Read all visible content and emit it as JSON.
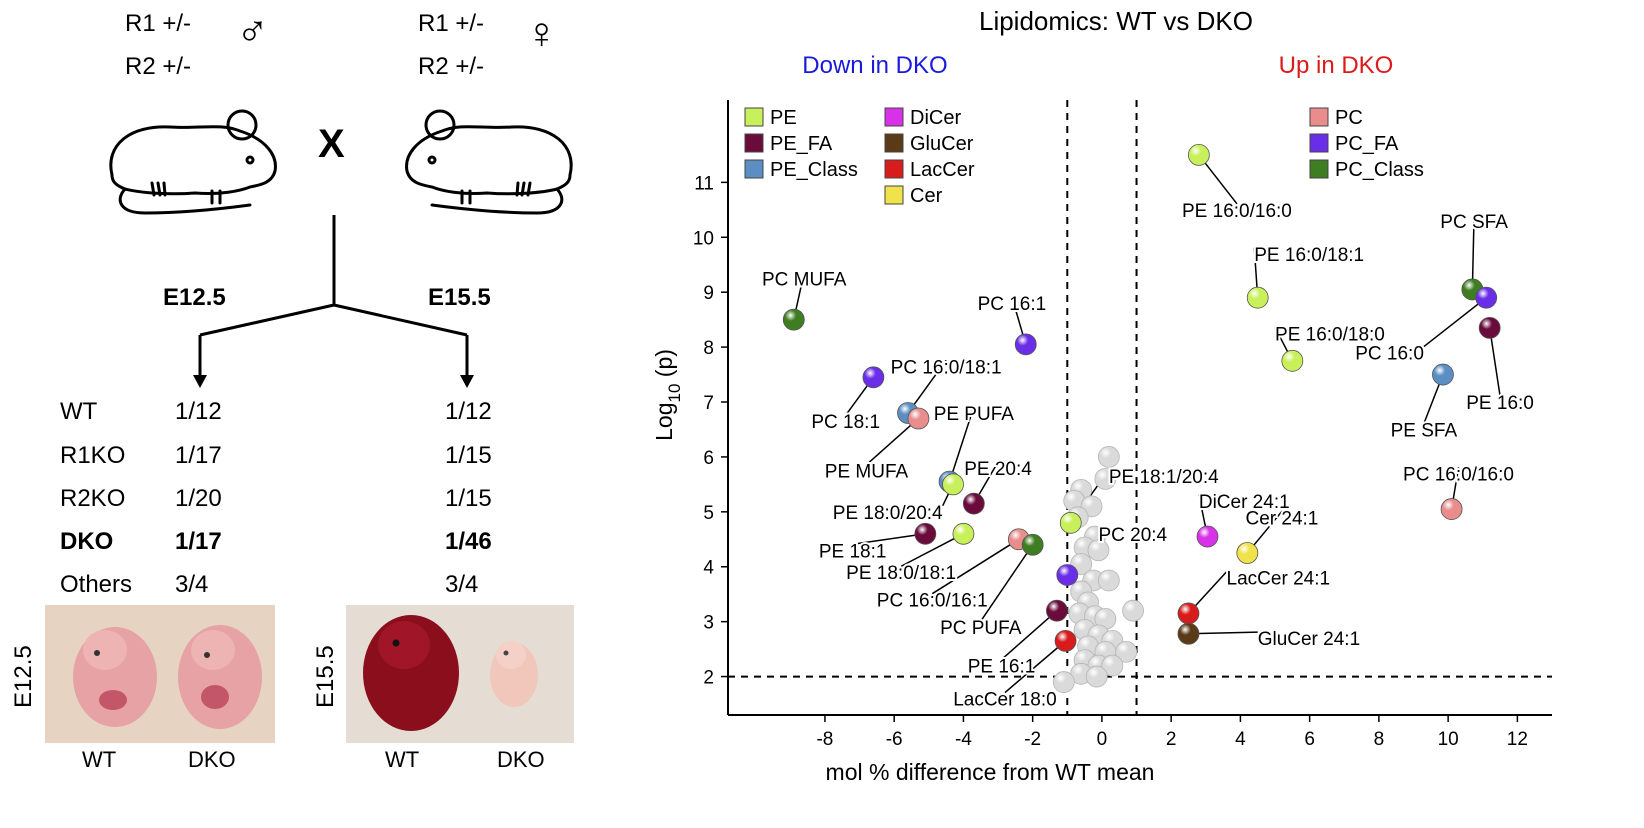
{
  "breeding": {
    "male": {
      "r1": "R1 +/-",
      "r2": "R2 +/-",
      "symbol": "♂"
    },
    "female": {
      "r1": "R1 +/-",
      "r2": "R2 +/-",
      "symbol": "♀"
    },
    "cross": "X",
    "stages": [
      "E12.5",
      "E15.5"
    ]
  },
  "ratios": {
    "rows": [
      {
        "label": "WT",
        "e12": "1/12",
        "e15": "1/12",
        "bold": false
      },
      {
        "label": "R1KO",
        "e12": "1/17",
        "e15": "1/15",
        "bold": false
      },
      {
        "label": "R2KO",
        "e12": "1/20",
        "e15": "1/15",
        "bold": false
      },
      {
        "label": "DKO",
        "e12": "1/17",
        "e15": "1/46",
        "bold": true
      },
      {
        "label": "Others",
        "e12": "3/4",
        "e15": "3/4",
        "bold": false
      }
    ]
  },
  "photos": [
    {
      "stage": "E12.5",
      "left": "WT",
      "right": "DKO"
    },
    {
      "stage": "E15.5",
      "left": "WT",
      "right": "DKO"
    }
  ],
  "chart_data": {
    "type": "scatter",
    "title": "Lipidomics: WT vs DKO",
    "annotation_down": "Down in DKO",
    "annotation_up": "Up in DKO",
    "xlabel": "mol % difference from WT mean",
    "ylabel_base": "Log",
    "ylabel_sub": "10",
    "ylabel_tail": " (p)",
    "xlim": [
      -10.8,
      13
    ],
    "ylim": [
      1.3,
      12.5
    ],
    "xticks": [
      -8,
      -6,
      -4,
      -2,
      0,
      2,
      4,
      6,
      8,
      10,
      12
    ],
    "yticks": [
      2,
      3,
      4,
      5,
      6,
      7,
      8,
      9,
      10,
      11
    ],
    "thresholds": {
      "x": [
        -1,
        1
      ],
      "y": 2
    },
    "colors": {
      "PE": "#c8f05a",
      "PE_FA": "#6b0b3c",
      "PE_Class": "#5b8fc4",
      "DiCer": "#d832e8",
      "GluCer": "#5b3a17",
      "LacCer": "#d81c1c",
      "Cer": "#f0e24a",
      "PC": "#e88c8c",
      "PC_FA": "#6a2ee8",
      "PC_Class": "#3f7d23",
      "NS": "#dadada",
      "down": "#1a1adc",
      "up": "#dc1a1a"
    },
    "legend_left": [
      {
        "name": "PE",
        "cls": "PE"
      },
      {
        "name": "PE_FA",
        "cls": "PE_FA"
      },
      {
        "name": "PE_Class",
        "cls": "PE_Class"
      }
    ],
    "legend_mid": [
      {
        "name": "DiCer",
        "cls": "DiCer"
      },
      {
        "name": "GluCer",
        "cls": "GluCer"
      },
      {
        "name": "LacCer",
        "cls": "LacCer"
      },
      {
        "name": "Cer",
        "cls": "Cer"
      }
    ],
    "legend_right": [
      {
        "name": "PC",
        "cls": "PC"
      },
      {
        "name": "PC_FA",
        "cls": "PC_FA"
      },
      {
        "name": "PC_Class",
        "cls": "PC_Class"
      }
    ],
    "points": [
      {
        "x": 2.8,
        "y": 11.5,
        "cls": "PE",
        "label": "PE 16:0/16:0",
        "lx": 3.9,
        "ly": 10.5,
        "anchor": "middle"
      },
      {
        "x": 4.5,
        "y": 8.9,
        "cls": "PE",
        "label": "PE 16:0/18:1",
        "lx": 4.4,
        "ly": 9.7,
        "anchor": "start"
      },
      {
        "x": 5.5,
        "y": 7.75,
        "cls": "PE",
        "label": "PE 16:0/18:0",
        "lx": 5.0,
        "ly": 8.25,
        "anchor": "start"
      },
      {
        "x": 10.7,
        "y": 9.05,
        "cls": "PC_Class",
        "label": "PC SFA",
        "lx": 10.75,
        "ly": 10.3,
        "anchor": "middle"
      },
      {
        "x": 11.1,
        "y": 8.9,
        "cls": "PC_FA",
        "label": "PC 16:0",
        "lx": 9.3,
        "ly": 7.9,
        "anchor": "end"
      },
      {
        "x": 11.2,
        "y": 8.35,
        "cls": "PE_FA",
        "label": "PE 16:0",
        "lx": 11.5,
        "ly": 7.0,
        "anchor": "middle"
      },
      {
        "x": 9.85,
        "y": 7.5,
        "cls": "PE_Class",
        "label": "PE SFA",
        "lx": 9.3,
        "ly": 6.5,
        "anchor": "middle"
      },
      {
        "x": 10.1,
        "y": 5.05,
        "cls": "PC",
        "label": "PC 16:0/16:0",
        "lx": 10.3,
        "ly": 5.7,
        "anchor": "middle"
      },
      {
        "x": 3.05,
        "y": 4.55,
        "cls": "DiCer",
        "label": "DiCer 24:1",
        "lx": 2.8,
        "ly": 5.2,
        "anchor": "start"
      },
      {
        "x": 4.2,
        "y": 4.25,
        "cls": "Cer",
        "label": "Cer 24:1",
        "lx": 5.2,
        "ly": 4.9,
        "anchor": "middle"
      },
      {
        "x": 2.5,
        "y": 3.15,
        "cls": "LacCer",
        "label": "LacCer 24:1",
        "lx": 3.6,
        "ly": 3.8,
        "anchor": "start"
      },
      {
        "x": 2.5,
        "y": 2.78,
        "cls": "GluCer",
        "label": "GluCer 24:1",
        "lx": 4.5,
        "ly": 2.7,
        "anchor": "start"
      },
      {
        "x": -8.9,
        "y": 8.5,
        "cls": "PC_Class",
        "label": "PC MUFA",
        "lx": -8.6,
        "ly": 9.25,
        "anchor": "middle"
      },
      {
        "x": -2.2,
        "y": 8.05,
        "cls": "PC_FA",
        "label": "PC 16:1",
        "lx": -2.6,
        "ly": 8.8,
        "anchor": "middle"
      },
      {
        "x": -6.6,
        "y": 7.45,
        "cls": "PC_FA",
        "label": "PC 18:1",
        "lx": -7.4,
        "ly": 6.65,
        "anchor": "middle"
      },
      {
        "x": -5.6,
        "y": 6.8,
        "cls": "PE_Class",
        "label": "PC 16:0/18:1",
        "lx": -4.5,
        "ly": 7.65,
        "anchor": "middle"
      },
      {
        "x": -5.3,
        "y": 6.7,
        "cls": "PC",
        "label": "PE MUFA",
        "lx": -6.8,
        "ly": 5.75,
        "anchor": "middle"
      },
      {
        "x": -4.4,
        "y": 5.55,
        "cls": "PE_Class",
        "label": "PE PUFA",
        "lx": -3.7,
        "ly": 6.8,
        "anchor": "middle"
      },
      {
        "x": -3.7,
        "y": 5.15,
        "cls": "PE_FA",
        "label": "PE 20:4",
        "lx": -3.0,
        "ly": 5.8,
        "anchor": "middle"
      },
      {
        "x": -4.3,
        "y": 5.5,
        "cls": "PE",
        "label": "PE 18:0/20:4",
        "lx": -4.6,
        "ly": 5.0,
        "anchor": "end"
      },
      {
        "x": -5.1,
        "y": 4.6,
        "cls": "PE_FA",
        "label": "PE 18:1",
        "lx": -7.2,
        "ly": 4.3,
        "anchor": "middle"
      },
      {
        "x": -4,
        "y": 4.6,
        "cls": "PE",
        "label": "PE 18:0/18:1",
        "lx": -5.8,
        "ly": 3.9,
        "anchor": "middle"
      },
      {
        "x": -2.4,
        "y": 4.5,
        "cls": "PC",
        "label": "PC 16:0/16:1",
        "lx": -4.9,
        "ly": 3.4,
        "anchor": "middle"
      },
      {
        "x": -2,
        "y": 4.4,
        "cls": "PC_Class",
        "label": "PC PUFA",
        "lx": -3.5,
        "ly": 2.9,
        "anchor": "middle"
      },
      {
        "x": -0.9,
        "y": 4.8,
        "cls": "PE",
        "label": "PE 18:1/20:4",
        "lx": 0.2,
        "ly": 5.65,
        "anchor": "start"
      },
      {
        "x": -1,
        "y": 3.85,
        "cls": "PC_FA",
        "label": "PC 20:4",
        "lx": -0.1,
        "ly": 4.6,
        "anchor": "start"
      },
      {
        "x": -1.3,
        "y": 3.2,
        "cls": "PE_FA",
        "label": "PE 16:1",
        "lx": -2.9,
        "ly": 2.2,
        "anchor": "middle"
      },
      {
        "x": -1.05,
        "y": 2.65,
        "cls": "LacCer",
        "label": "LacCer 18:0",
        "lx": -2.8,
        "ly": 1.6,
        "anchor": "middle"
      },
      {
        "x": 0.2,
        "y": 6.0,
        "cls": "NS"
      },
      {
        "x": 0.1,
        "y": 5.6,
        "cls": "NS"
      },
      {
        "x": -0.6,
        "y": 5.4,
        "cls": "NS"
      },
      {
        "x": -0.8,
        "y": 5.2,
        "cls": "NS"
      },
      {
        "x": -0.3,
        "y": 5.1,
        "cls": "NS"
      },
      {
        "x": -0.7,
        "y": 4.9,
        "cls": "NS"
      },
      {
        "x": -0.2,
        "y": 4.55,
        "cls": "NS"
      },
      {
        "x": -0.5,
        "y": 4.35,
        "cls": "NS"
      },
      {
        "x": -0.1,
        "y": 4.3,
        "cls": "NS"
      },
      {
        "x": -0.6,
        "y": 4.05,
        "cls": "NS"
      },
      {
        "x": -0.25,
        "y": 3.75,
        "cls": "NS"
      },
      {
        "x": 0.2,
        "y": 3.75,
        "cls": "NS"
      },
      {
        "x": -0.6,
        "y": 3.55,
        "cls": "NS"
      },
      {
        "x": -0.4,
        "y": 3.35,
        "cls": "NS"
      },
      {
        "x": -0.65,
        "y": 3.15,
        "cls": "NS"
      },
      {
        "x": -0.2,
        "y": 3.1,
        "cls": "NS"
      },
      {
        "x": 0.1,
        "y": 3.05,
        "cls": "NS"
      },
      {
        "x": 0.9,
        "y": 3.2,
        "cls": "NS"
      },
      {
        "x": -0.5,
        "y": 2.85,
        "cls": "NS"
      },
      {
        "x": -0.1,
        "y": 2.75,
        "cls": "NS"
      },
      {
        "x": 0.3,
        "y": 2.65,
        "cls": "NS"
      },
      {
        "x": -0.4,
        "y": 2.55,
        "cls": "NS"
      },
      {
        "x": 0.1,
        "y": 2.45,
        "cls": "NS"
      },
      {
        "x": 0.7,
        "y": 2.45,
        "cls": "NS"
      },
      {
        "x": -0.5,
        "y": 2.3,
        "cls": "NS"
      },
      {
        "x": -0.1,
        "y": 2.2,
        "cls": "NS"
      },
      {
        "x": 0.3,
        "y": 2.2,
        "cls": "NS"
      },
      {
        "x": -0.6,
        "y": 2.05,
        "cls": "NS"
      },
      {
        "x": -0.15,
        "y": 2.0,
        "cls": "NS"
      },
      {
        "x": -1.1,
        "y": 1.9,
        "cls": "NS"
      }
    ]
  }
}
